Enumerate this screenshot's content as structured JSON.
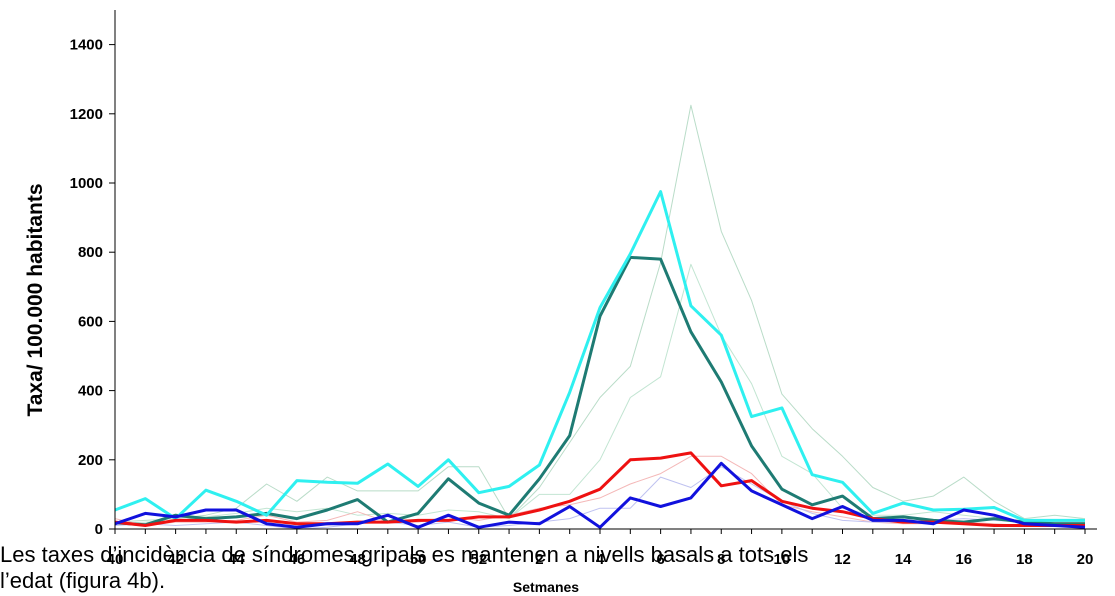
{
  "chart_data": {
    "type": "line",
    "title": "",
    "xlabel": "Setmanes",
    "ylabel": "Taxa/ 100.000 habitants",
    "ylim": [
      0,
      1500
    ],
    "yticks": [
      0,
      200,
      400,
      600,
      800,
      1000,
      1200,
      1400
    ],
    "x_tick_labels": [
      "40",
      "42",
      "44",
      "46",
      "48",
      "50",
      "52",
      "2",
      "4",
      "6",
      "8",
      "10",
      "12",
      "14",
      "16",
      "18",
      "20"
    ],
    "grid": false,
    "legend": "none",
    "x": [
      "40",
      "41",
      "42",
      "43",
      "44",
      "45",
      "46",
      "47",
      "48",
      "49",
      "50",
      "51",
      "52",
      "1",
      "2",
      "3",
      "4",
      "5",
      "6",
      "7",
      "8",
      "9",
      "10",
      "11",
      "12",
      "13",
      "14",
      "15",
      "16",
      "17",
      "18",
      "19",
      "20"
    ],
    "series": [
      {
        "color": "#b9dcc8",
        "width": 1,
        "values": [
          20,
          25,
          30,
          40,
          60,
          130,
          80,
          150,
          110,
          110,
          110,
          180,
          180,
          30,
          120,
          250,
          380,
          470,
          770,
          1225,
          860,
          660,
          390,
          290,
          210,
          120,
          80,
          95,
          150,
          80,
          30,
          40,
          30
        ]
      },
      {
        "color": "#c2e5d2",
        "width": 1,
        "values": [
          15,
          20,
          25,
          35,
          45,
          60,
          50,
          60,
          40,
          45,
          40,
          55,
          50,
          30,
          100,
          100,
          200,
          380,
          440,
          765,
          560,
          420,
          210,
          160,
          60,
          40,
          40,
          50,
          40,
          30,
          20,
          20,
          30
        ]
      },
      {
        "color": "#f4b8b8",
        "width": 1,
        "values": [
          30,
          10,
          20,
          20,
          25,
          40,
          20,
          25,
          50,
          20,
          20,
          35,
          25,
          40,
          60,
          70,
          90,
          130,
          160,
          210,
          210,
          160,
          70,
          50,
          35,
          20,
          15,
          15,
          20,
          15,
          10,
          20,
          20
        ]
      },
      {
        "color": "#bfc2f0",
        "width": 1,
        "values": [
          10,
          15,
          10,
          15,
          20,
          10,
          0,
          5,
          15,
          20,
          10,
          20,
          5,
          10,
          20,
          30,
          60,
          60,
          150,
          120,
          180,
          130,
          80,
          45,
          25,
          20,
          20,
          25,
          30,
          25,
          20,
          10,
          10
        ]
      },
      {
        "color": "#1e7b73",
        "width": 3,
        "values": [
          18,
          12,
          40,
          30,
          35,
          45,
          30,
          55,
          85,
          20,
          45,
          145,
          75,
          40,
          145,
          270,
          615,
          785,
          780,
          570,
          425,
          240,
          115,
          70,
          95,
          30,
          35,
          25,
          20,
          30,
          20,
          15,
          15
        ]
      },
      {
        "color": "#2ff0f0",
        "width": 3,
        "values": [
          55,
          88,
          30,
          112,
          80,
          40,
          140,
          135,
          132,
          188,
          123,
          200,
          105,
          123,
          185,
          395,
          640,
          795,
          975,
          645,
          560,
          325,
          350,
          157,
          135,
          45,
          75,
          55,
          57,
          62,
          25,
          25,
          25
        ]
      },
      {
        "color": "#ee1111",
        "width": 3,
        "values": [
          20,
          10,
          25,
          25,
          20,
          25,
          15,
          15,
          20,
          20,
          25,
          25,
          35,
          35,
          55,
          80,
          115,
          200,
          205,
          220,
          125,
          140,
          80,
          60,
          50,
          30,
          20,
          20,
          15,
          10,
          10,
          10,
          10
        ]
      },
      {
        "color": "#1111dd",
        "width": 3,
        "values": [
          15,
          45,
          35,
          55,
          55,
          15,
          5,
          15,
          15,
          40,
          5,
          40,
          5,
          20,
          15,
          65,
          5,
          90,
          65,
          90,
          190,
          110,
          70,
          30,
          65,
          25,
          25,
          15,
          55,
          40,
          15,
          10,
          5
        ]
      }
    ]
  },
  "overlay": {
    "line1": "Les taxes d’incidència de síndromes gripals es mantenen a nivells basals a tots els",
    "line2": "l’edat  (figura 4b)."
  }
}
